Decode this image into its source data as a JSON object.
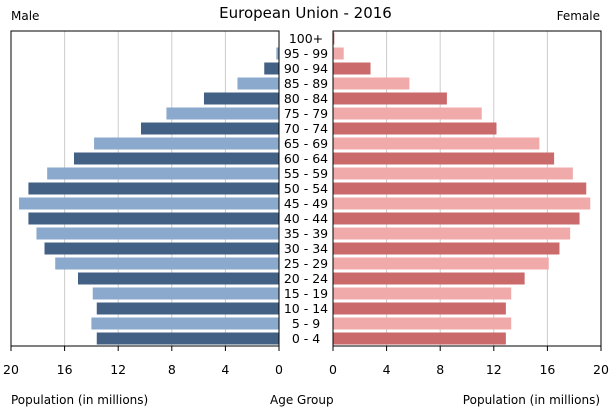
{
  "chart_data": {
    "type": "bar",
    "title": "European Union - 2016",
    "left_label": "Male",
    "right_label": "Female",
    "xlabel_left": "Population (in millions)",
    "xlabel_center": "Age Group",
    "xlabel_right": "Population (in millions)",
    "xlim": [
      0,
      20
    ],
    "xticks": [
      20,
      16,
      12,
      8,
      4,
      0
    ],
    "xticks_right": [
      0,
      4,
      8,
      12,
      16,
      20
    ],
    "categories": [
      "100+",
      "95 - 99",
      "90 - 94",
      "85 - 89",
      "80 - 84",
      "75 - 79",
      "70 - 74",
      "65 - 69",
      "60 - 64",
      "55 - 59",
      "50 - 54",
      "45 - 49",
      "40 - 44",
      "35 - 39",
      "30 - 34",
      "25 - 29",
      "20 - 24",
      "15 - 19",
      "10 - 14",
      "5 - 9",
      "0 - 4"
    ],
    "series": [
      {
        "name": "Male",
        "values": [
          0.02,
          0.2,
          1.1,
          3.1,
          5.6,
          8.4,
          10.3,
          13.8,
          15.3,
          17.3,
          18.7,
          19.4,
          18.7,
          18.1,
          17.5,
          16.7,
          15.0,
          13.9,
          13.6,
          14.0,
          13.6
        ]
      },
      {
        "name": "Female",
        "values": [
          0.1,
          0.8,
          2.8,
          5.7,
          8.5,
          11.1,
          12.2,
          15.4,
          16.5,
          17.9,
          18.9,
          19.2,
          18.4,
          17.7,
          16.9,
          16.1,
          14.3,
          13.3,
          12.9,
          13.3,
          12.9
        ]
      }
    ],
    "colors": {
      "male_dark": "#436085",
      "male_light": "#8aa9cc",
      "female_dark": "#cb6a6b",
      "female_light": "#f0aaaa",
      "grid": "#cccccc"
    },
    "grid": true
  }
}
